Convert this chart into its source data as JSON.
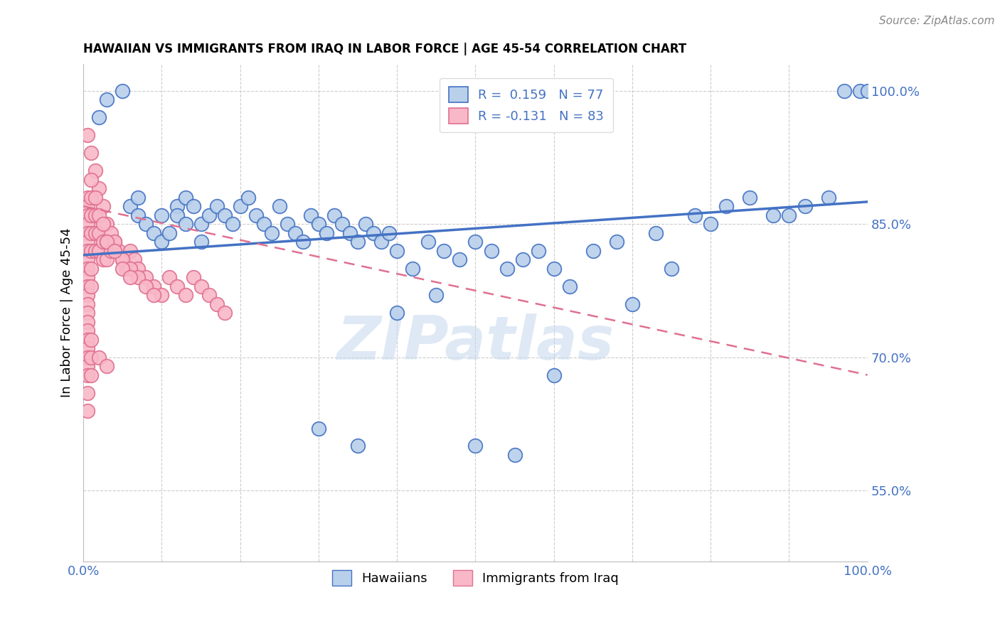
{
  "title": "HAWAIIAN VS IMMIGRANTS FROM IRAQ IN LABOR FORCE | AGE 45-54 CORRELATION CHART",
  "source": "Source: ZipAtlas.com",
  "ylabel": "In Labor Force | Age 45-54",
  "xlim": [
    0,
    1
  ],
  "ylim": [
    0.47,
    1.03
  ],
  "ytick_positions": [
    0.55,
    0.7,
    0.85,
    1.0
  ],
  "ytick_labels": [
    "55.0%",
    "70.0%",
    "85.0%",
    "100.0%"
  ],
  "legend_label1": "Hawaiians",
  "legend_label2": "Immigrants from Iraq",
  "color_blue_fill": "#b8d0ea",
  "color_blue_edge": "#4472c4",
  "color_pink_fill": "#f9b8c8",
  "color_pink_edge": "#e07090",
  "color_blue_line": "#4472c4",
  "color_pink_line": "#e07090",
  "color_legend_text": "#4472c4",
  "watermark": "ZIPatlas",
  "blue_x": [
    0.02,
    0.03,
    0.05,
    0.06,
    0.07,
    0.07,
    0.08,
    0.09,
    0.1,
    0.1,
    0.11,
    0.12,
    0.12,
    0.13,
    0.13,
    0.14,
    0.15,
    0.15,
    0.16,
    0.17,
    0.18,
    0.19,
    0.2,
    0.21,
    0.22,
    0.23,
    0.24,
    0.25,
    0.26,
    0.27,
    0.28,
    0.29,
    0.3,
    0.31,
    0.32,
    0.33,
    0.34,
    0.35,
    0.36,
    0.37,
    0.38,
    0.39,
    0.4,
    0.42,
    0.44,
    0.46,
    0.48,
    0.5,
    0.52,
    0.54,
    0.56,
    0.58,
    0.6,
    0.62,
    0.65,
    0.68,
    0.7,
    0.73,
    0.75,
    0.78,
    0.8,
    0.82,
    0.85,
    0.88,
    0.9,
    0.92,
    0.95,
    0.97,
    0.99,
    1.0,
    0.3,
    0.35,
    0.4,
    0.45,
    0.5,
    0.55,
    0.6
  ],
  "blue_y": [
    0.97,
    0.99,
    1.0,
    0.87,
    0.86,
    0.88,
    0.85,
    0.84,
    0.83,
    0.86,
    0.84,
    0.87,
    0.86,
    0.85,
    0.88,
    0.87,
    0.85,
    0.83,
    0.86,
    0.87,
    0.86,
    0.85,
    0.87,
    0.88,
    0.86,
    0.85,
    0.84,
    0.87,
    0.85,
    0.84,
    0.83,
    0.86,
    0.85,
    0.84,
    0.86,
    0.85,
    0.84,
    0.83,
    0.85,
    0.84,
    0.83,
    0.84,
    0.82,
    0.8,
    0.83,
    0.82,
    0.81,
    0.83,
    0.82,
    0.8,
    0.81,
    0.82,
    0.8,
    0.78,
    0.82,
    0.83,
    0.76,
    0.84,
    0.8,
    0.86,
    0.85,
    0.87,
    0.88,
    0.86,
    0.86,
    0.87,
    0.88,
    1.0,
    1.0,
    1.0,
    0.62,
    0.6,
    0.75,
    0.77,
    0.6,
    0.59,
    0.68
  ],
  "pink_x": [
    0.005,
    0.005,
    0.005,
    0.005,
    0.005,
    0.005,
    0.005,
    0.005,
    0.005,
    0.005,
    0.005,
    0.005,
    0.005,
    0.005,
    0.005,
    0.005,
    0.005,
    0.005,
    0.005,
    0.005,
    0.01,
    0.01,
    0.01,
    0.01,
    0.01,
    0.01,
    0.015,
    0.015,
    0.015,
    0.02,
    0.02,
    0.025,
    0.025,
    0.03,
    0.03,
    0.035,
    0.04,
    0.045,
    0.05,
    0.055,
    0.06,
    0.065,
    0.07,
    0.08,
    0.09,
    0.1,
    0.11,
    0.12,
    0.13,
    0.14,
    0.15,
    0.16,
    0.17,
    0.18,
    0.005,
    0.01,
    0.015,
    0.02,
    0.025,
    0.03,
    0.035,
    0.04,
    0.05,
    0.06,
    0.07,
    0.08,
    0.09,
    0.01,
    0.015,
    0.02,
    0.025,
    0.03,
    0.04,
    0.05,
    0.06,
    0.005,
    0.005,
    0.005,
    0.01,
    0.01,
    0.01,
    0.02,
    0.03
  ],
  "pink_y": [
    0.88,
    0.87,
    0.86,
    0.85,
    0.84,
    0.83,
    0.82,
    0.81,
    0.8,
    0.79,
    0.78,
    0.77,
    0.76,
    0.75,
    0.74,
    0.73,
    0.72,
    0.71,
    0.7,
    0.69,
    0.88,
    0.86,
    0.84,
    0.82,
    0.8,
    0.78,
    0.86,
    0.84,
    0.82,
    0.84,
    0.82,
    0.83,
    0.81,
    0.83,
    0.81,
    0.82,
    0.83,
    0.82,
    0.81,
    0.8,
    0.82,
    0.81,
    0.8,
    0.79,
    0.78,
    0.77,
    0.79,
    0.78,
    0.77,
    0.79,
    0.78,
    0.77,
    0.76,
    0.75,
    0.95,
    0.93,
    0.91,
    0.89,
    0.87,
    0.85,
    0.84,
    0.83,
    0.81,
    0.8,
    0.79,
    0.78,
    0.77,
    0.9,
    0.88,
    0.86,
    0.85,
    0.83,
    0.82,
    0.8,
    0.79,
    0.68,
    0.66,
    0.64,
    0.72,
    0.7,
    0.68,
    0.7,
    0.69
  ],
  "blue_trendline_x": [
    0.0,
    1.0
  ],
  "blue_trendline_y": [
    0.815,
    0.875
  ],
  "pink_trendline_x": [
    0.0,
    1.0
  ],
  "pink_trendline_y": [
    0.87,
    0.68
  ]
}
